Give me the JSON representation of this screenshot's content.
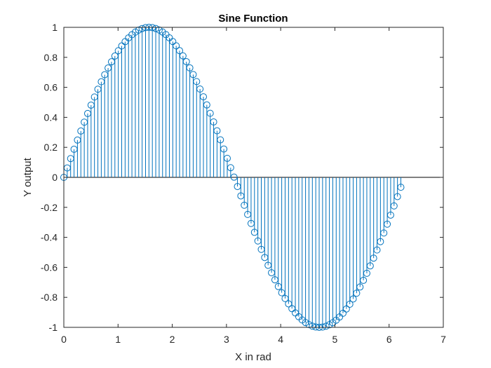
{
  "chart_data": {
    "type": "stem",
    "title": "Sine Function",
    "xlabel": "X in rad",
    "ylabel": "Y output",
    "xlim": [
      0,
      7
    ],
    "ylim": [
      -1,
      1
    ],
    "xticks": [
      "0",
      "1",
      "2",
      "3",
      "4",
      "5",
      "6",
      "7"
    ],
    "yticks": [
      "-1",
      "-0.8",
      "-0.6",
      "-0.4",
      "-0.2",
      "0",
      "0.2",
      "0.4",
      "0.6",
      "0.8",
      "1"
    ],
    "series": [
      {
        "function": "sin(x)",
        "x_start": 0,
        "x_step": 0.0628,
        "x_end": 6.22,
        "marker": "open-circle",
        "color": "#0072BD"
      }
    ],
    "grid": false,
    "box": true
  }
}
